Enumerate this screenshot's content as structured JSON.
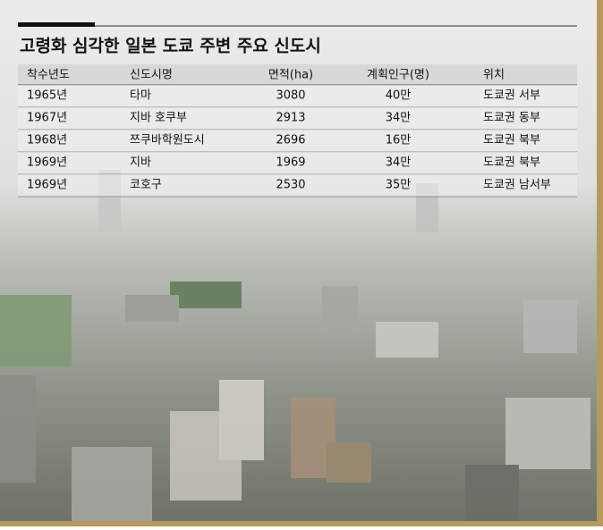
{
  "header": {
    "title": "고령화 심각한 일본 도쿄 주변 주요 신도시"
  },
  "table": {
    "columns": [
      "착수년도",
      "신도시명",
      "면적(ha)",
      "계획인구(명)",
      "위치"
    ],
    "rows": [
      [
        "1965년",
        "타마",
        "3080",
        "40만",
        "도쿄권 서부"
      ],
      [
        "1967년",
        "지바 호쿠부",
        "2913",
        "34만",
        "도쿄권 동부"
      ],
      [
        "1968년",
        "쯔쿠바학원도시",
        "2696",
        "16만",
        "도쿄권 북부"
      ],
      [
        "1969년",
        "지바",
        "1969",
        "34만",
        "도쿄권 북부"
      ],
      [
        "1969년",
        "코호구",
        "2530",
        "35만",
        "도쿄권 남서부"
      ]
    ]
  }
}
